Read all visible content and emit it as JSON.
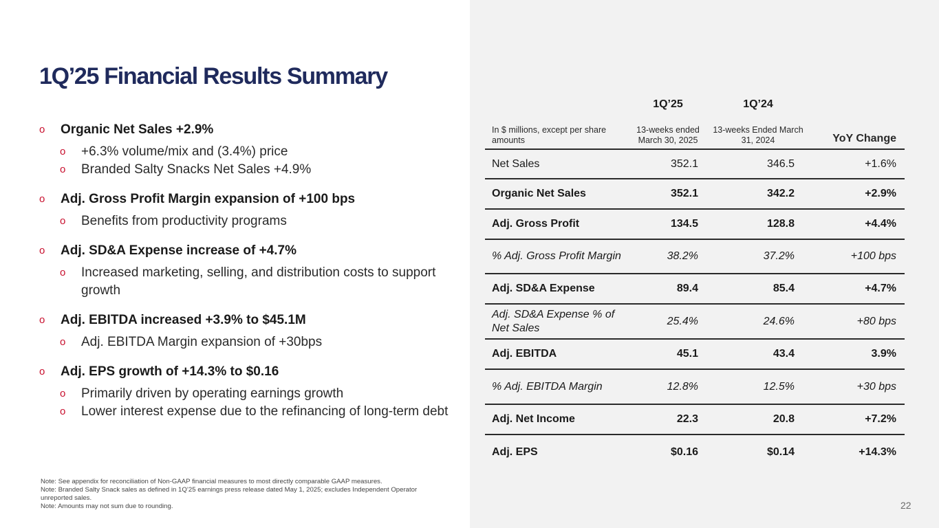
{
  "title": "1Q’25 Financial Results Summary",
  "bullets": [
    {
      "text": "Organic Net Sales +2.9%",
      "sub": [
        "+6.3% volume/mix and (3.4%) price",
        "Branded Salty Snacks Net Sales +4.9%"
      ]
    },
    {
      "text": "Adj. Gross Profit Margin expansion of +100 bps",
      "sub": [
        "Benefits from productivity programs"
      ]
    },
    {
      "text": "Adj. SD&A Expense increase of +4.7%",
      "sub": [
        "Increased marketing, selling, and distribution costs to support growth"
      ]
    },
    {
      "text": "Adj. EBITDA increased +3.9% to $45.1M",
      "sub": [
        "Adj. EBITDA Margin expansion of +30bps"
      ]
    },
    {
      "text": "Adj. EPS growth of +14.3% to $0.16",
      "sub": [
        "Primarily driven by operating earnings growth",
        "Lower interest expense due to the refinancing of long-term debt"
      ]
    }
  ],
  "bullet_marker": "o",
  "table": {
    "period_1": "1Q’25",
    "period_2": "1Q’24",
    "unit_note": "In $ millions, except per share amounts",
    "period_1_sub": "13-weeks ended March 30, 2025",
    "period_2_sub": "13-weeks Ended March 31, 2024",
    "yoy_header": "YoY Change",
    "rows": [
      {
        "label": "Net Sales",
        "q125": "352.1",
        "q124": "346.5",
        "yoy": "+1.6%"
      },
      {
        "label": "Organic Net Sales",
        "q125": "352.1",
        "q124": "342.2",
        "yoy": "+2.9%"
      },
      {
        "label": "Adj. Gross Profit",
        "q125": "134.5",
        "q124": "128.8",
        "yoy": "+4.4%"
      },
      {
        "label": "% Adj. Gross Profit Margin",
        "q125": "38.2%",
        "q124": "37.2%",
        "yoy": "+100 bps"
      },
      {
        "label": "Adj. SD&A Expense",
        "q125": "89.4",
        "q124": "85.4",
        "yoy": "+4.7%"
      },
      {
        "label": "Adj. SD&A Expense % of Net Sales",
        "q125": "25.4%",
        "q124": "24.6%",
        "yoy": "+80 bps"
      },
      {
        "label": "Adj. EBITDA",
        "q125": "45.1",
        "q124": "43.4",
        "yoy": "3.9%"
      },
      {
        "label": "% Adj. EBITDA Margin",
        "q125": "12.8%",
        "q124": "12.5%",
        "yoy": "+30 bps"
      },
      {
        "label": "Adj. Net Income",
        "q125": "22.3",
        "q124": "20.8",
        "yoy": "+7.2%"
      },
      {
        "label": "Adj. EPS",
        "q125": "$0.16",
        "q124": "$0.14",
        "yoy": "+14.3%"
      }
    ]
  },
  "notes": [
    "Note: See appendix for reconciliation of Non-GAAP financial measures to most directly comparable GAAP measures.",
    "Note: Branded Salty Snack sales as defined in 1Q’25 earnings press release dated May 1, 2025; excludes Independent Operator unreported sales.",
    "Note: Amounts may not sum due to rounding."
  ],
  "page_number": "22",
  "colors": {
    "title": "#1f2a5c",
    "bullet_marker": "#c8102e",
    "panel": "#f2f2f2"
  }
}
